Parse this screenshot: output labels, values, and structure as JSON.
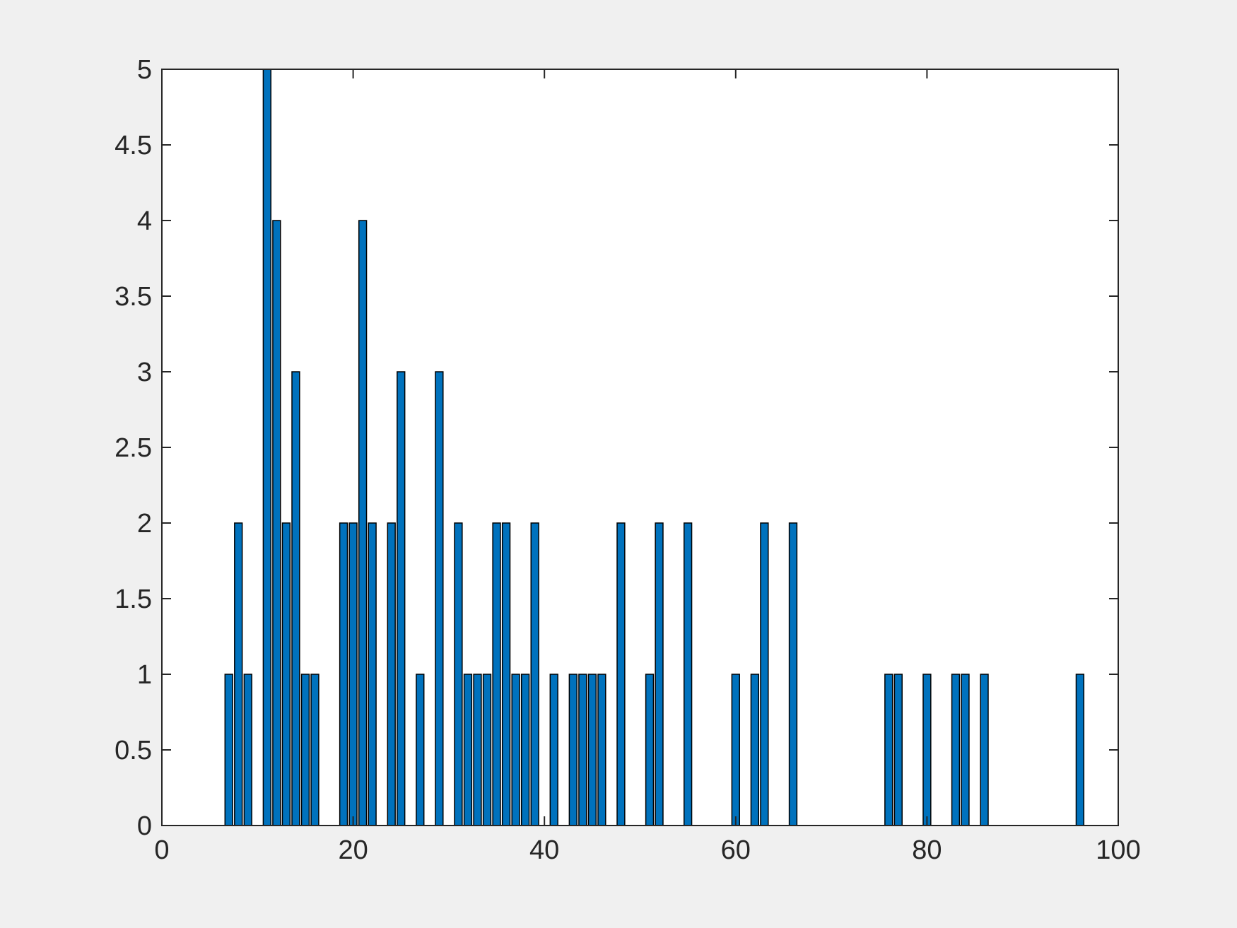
{
  "chart_data": {
    "type": "bar",
    "title": "",
    "xlabel": "",
    "ylabel": "",
    "xlim": [
      0,
      100
    ],
    "ylim": [
      0,
      5
    ],
    "xticks": [
      0,
      20,
      40,
      60,
      80,
      100
    ],
    "yticks": [
      0,
      0.5,
      1,
      1.5,
      2,
      2.5,
      3,
      3.5,
      4,
      4.5,
      5
    ],
    "xtick_labels": [
      "0",
      "20",
      "40",
      "60",
      "80",
      "100"
    ],
    "ytick_labels": [
      "0",
      "0.5",
      "1",
      "1.5",
      "2",
      "2.5",
      "3",
      "3.5",
      "4",
      "4.5",
      "5"
    ],
    "x": [
      1,
      2,
      3,
      4,
      5,
      6,
      7,
      8,
      9,
      10,
      11,
      12,
      13,
      14,
      15,
      16,
      17,
      18,
      19,
      20,
      21,
      22,
      23,
      24,
      25,
      26,
      27,
      28,
      29,
      30,
      31,
      32,
      33,
      34,
      35,
      36,
      37,
      38,
      39,
      40,
      41,
      42,
      43,
      44,
      45,
      46,
      47,
      48,
      49,
      50,
      51,
      52,
      53,
      54,
      55,
      56,
      57,
      58,
      59,
      60,
      61,
      62,
      63,
      64,
      65,
      66,
      67,
      68,
      69,
      70,
      71,
      72,
      73,
      74,
      75,
      76,
      77,
      78,
      79,
      80,
      81,
      82,
      83,
      84,
      85,
      86,
      87,
      88,
      89,
      90,
      91,
      92,
      93,
      94,
      95,
      96,
      97,
      98,
      99
    ],
    "values": [
      0,
      0,
      0,
      0,
      0,
      0,
      1,
      2,
      1,
      0,
      5,
      4,
      2,
      3,
      1,
      1,
      0,
      0,
      2,
      2,
      4,
      2,
      0,
      2,
      3,
      0,
      1,
      0,
      3,
      0,
      2,
      1,
      1,
      1,
      2,
      2,
      1,
      1,
      2,
      0,
      1,
      0,
      1,
      1,
      1,
      1,
      0,
      2,
      0,
      0,
      1,
      2,
      0,
      0,
      2,
      0,
      0,
      0,
      0,
      1,
      0,
      1,
      2,
      0,
      0,
      2,
      0,
      0,
      0,
      0,
      0,
      0,
      0,
      0,
      0,
      1,
      1,
      0,
      0,
      1,
      0,
      0,
      1,
      1,
      0,
      1,
      0,
      0,
      0,
      0,
      0,
      0,
      0,
      0,
      0,
      1,
      0,
      0,
      0
    ],
    "grid": false,
    "colors": {
      "bar_fill": "#0072bd",
      "bar_edge": "#000000",
      "axes": "#262626",
      "axes_background": "#ffffff",
      "figure_background": "#f0f0f0"
    }
  }
}
